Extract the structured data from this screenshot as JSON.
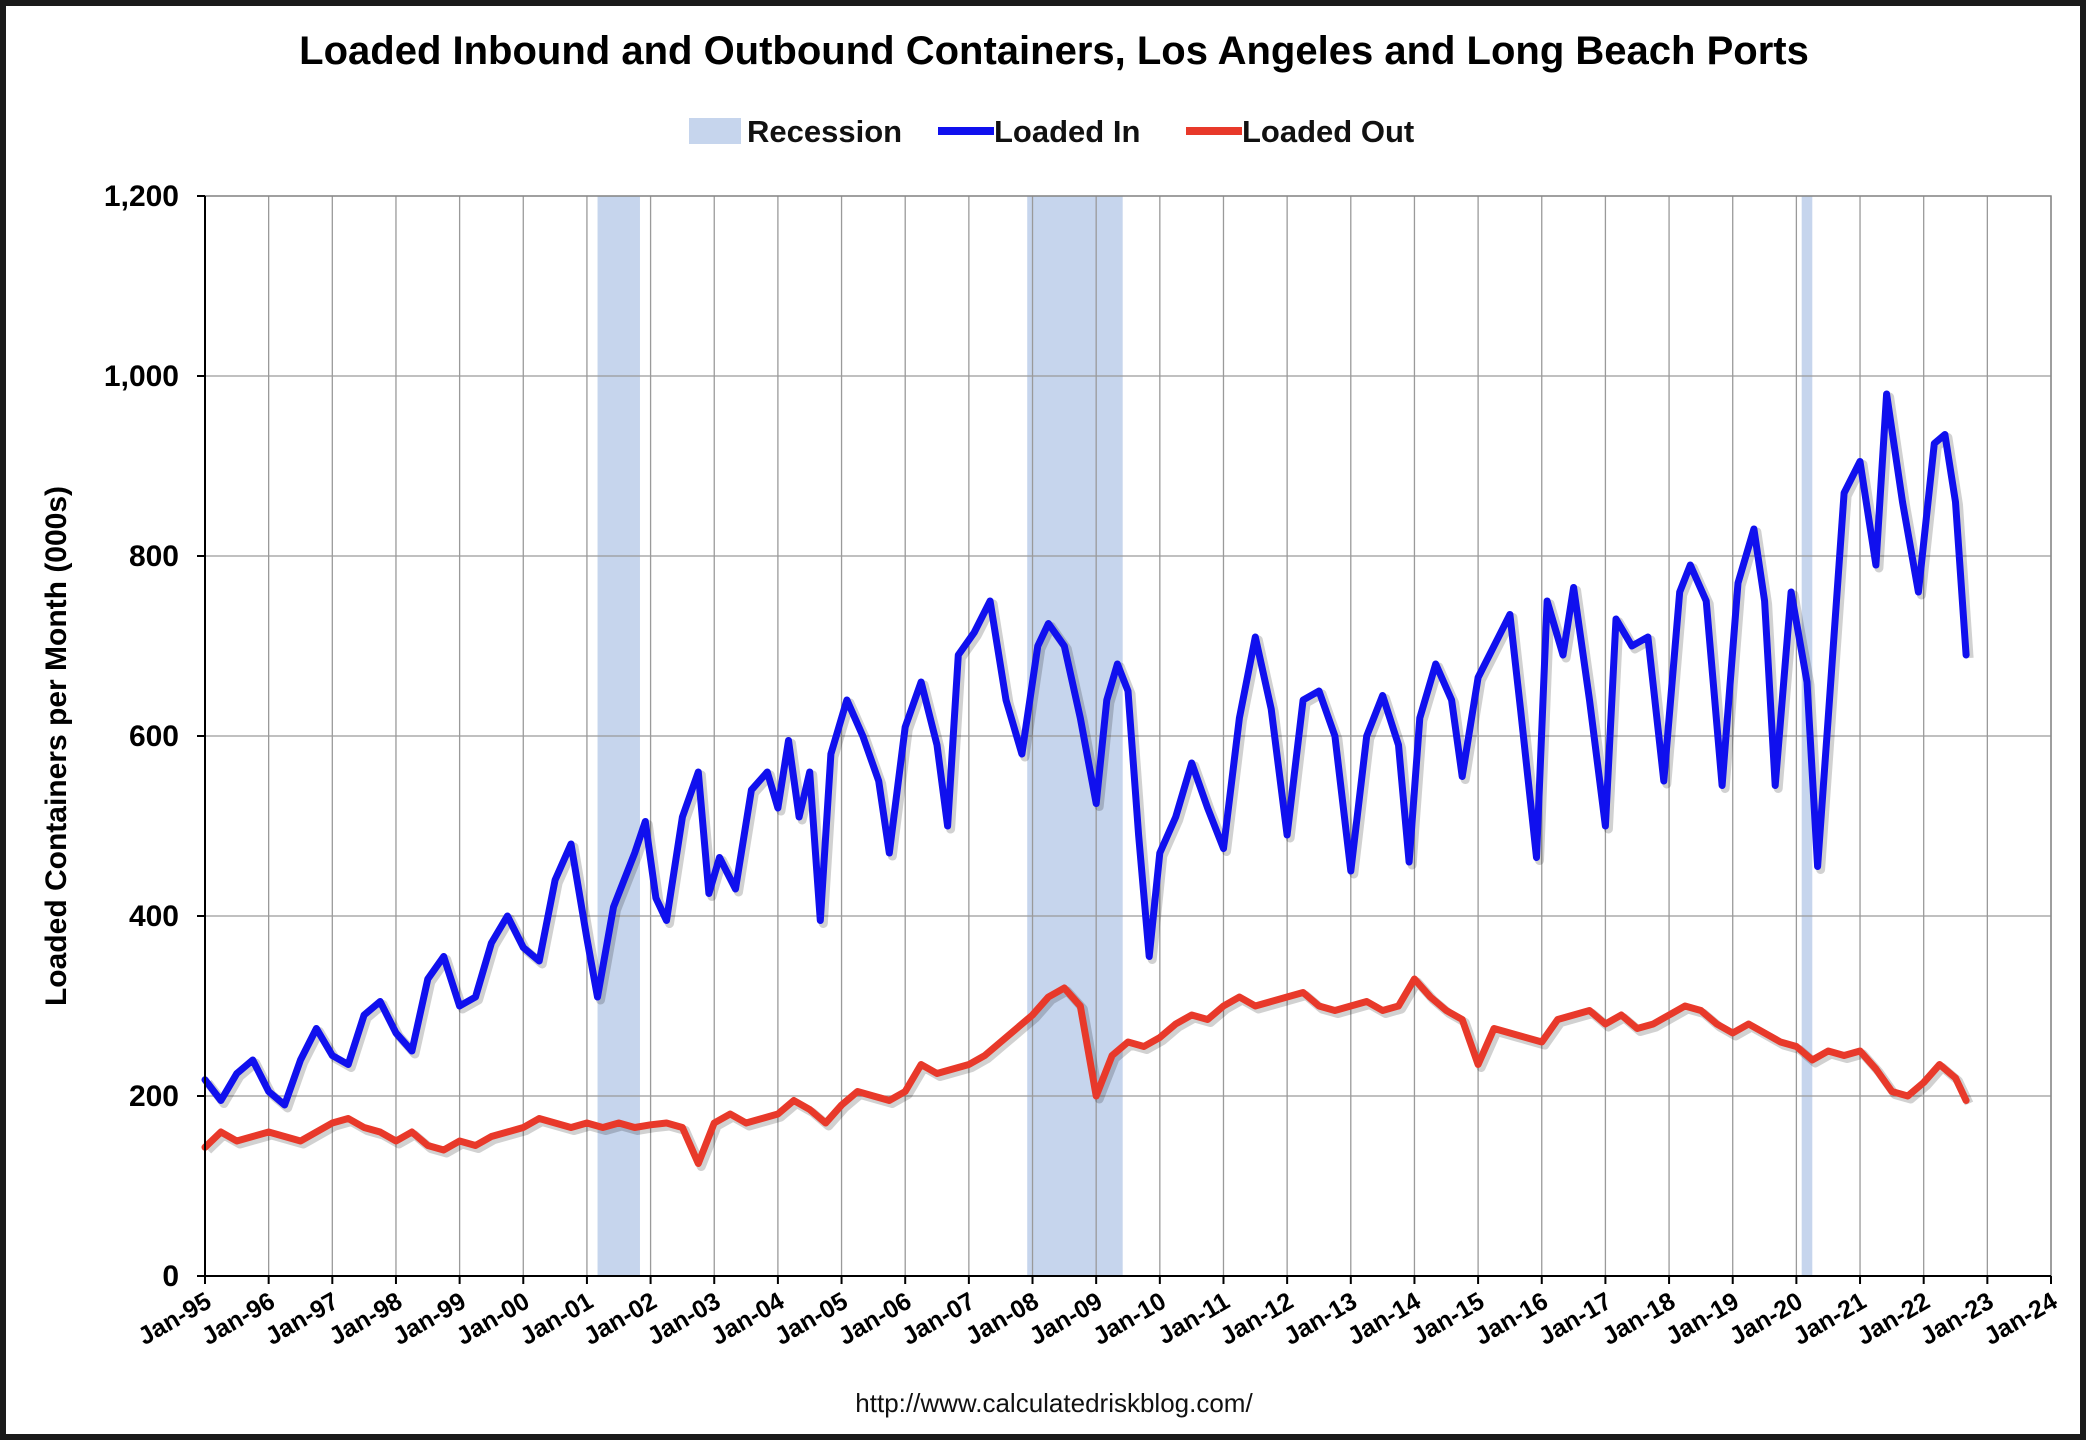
{
  "chart_data": {
    "type": "line",
    "title": "Loaded Inbound and Outbound Containers, Los Angeles and Long Beach Ports",
    "ylabel": "Loaded Containers per Month (000s)",
    "xlabel": "",
    "ylim": [
      0,
      1200
    ],
    "yticks": [
      0,
      200,
      400,
      600,
      800,
      1000,
      1200
    ],
    "ytick_labels": [
      "0",
      "200",
      "400",
      "600",
      "800",
      "1,000",
      "1,200"
    ],
    "xlim": [
      "1995-01",
      "2024-01"
    ],
    "xtick_labels": [
      "Jan-95",
      "Jan-96",
      "Jan-97",
      "Jan-98",
      "Jan-99",
      "Jan-00",
      "Jan-01",
      "Jan-02",
      "Jan-03",
      "Jan-04",
      "Jan-05",
      "Jan-06",
      "Jan-07",
      "Jan-08",
      "Jan-09",
      "Jan-10",
      "Jan-11",
      "Jan-12",
      "Jan-13",
      "Jan-14",
      "Jan-15",
      "Jan-16",
      "Jan-17",
      "Jan-18",
      "Jan-19",
      "Jan-20",
      "Jan-21",
      "Jan-22",
      "Jan-23",
      "Jan-24"
    ],
    "grid": true,
    "legend_placement": "top",
    "legend": [
      {
        "label": "Recession",
        "kind": "band",
        "color": "#c6d5ed"
      },
      {
        "label": "Loaded In",
        "kind": "line",
        "color": "#1010ee"
      },
      {
        "label": "Loaded Out",
        "kind": "line",
        "color": "#e8392a"
      }
    ],
    "recessions": [
      {
        "start": "2001-03",
        "end": "2001-11"
      },
      {
        "start": "2007-12",
        "end": "2009-06"
      },
      {
        "start": "2020-02",
        "end": "2020-04"
      }
    ],
    "series": [
      {
        "name": "Loaded In",
        "color": "#1010ee",
        "points": [
          [
            "1995-01",
            218
          ],
          [
            "1995-04",
            195
          ],
          [
            "1995-07",
            225
          ],
          [
            "1995-10",
            240
          ],
          [
            "1996-01",
            205
          ],
          [
            "1996-04",
            190
          ],
          [
            "1996-07",
            240
          ],
          [
            "1996-10",
            275
          ],
          [
            "1997-01",
            245
          ],
          [
            "1997-04",
            235
          ],
          [
            "1997-07",
            290
          ],
          [
            "1997-10",
            305
          ],
          [
            "1998-01",
            270
          ],
          [
            "1998-04",
            250
          ],
          [
            "1998-07",
            330
          ],
          [
            "1998-10",
            355
          ],
          [
            "1999-01",
            300
          ],
          [
            "1999-04",
            310
          ],
          [
            "1999-07",
            370
          ],
          [
            "1999-10",
            400
          ],
          [
            "2000-01",
            365
          ],
          [
            "2000-04",
            350
          ],
          [
            "2000-07",
            440
          ],
          [
            "2000-10",
            480
          ],
          [
            "2001-01",
            375
          ],
          [
            "2001-03",
            310
          ],
          [
            "2001-06",
            410
          ],
          [
            "2001-10",
            470
          ],
          [
            "2001-12",
            505
          ],
          [
            "2002-02",
            420
          ],
          [
            "2002-04",
            395
          ],
          [
            "2002-07",
            510
          ],
          [
            "2002-10",
            560
          ],
          [
            "2002-12",
            425
          ],
          [
            "2003-02",
            465
          ],
          [
            "2003-05",
            430
          ],
          [
            "2003-08",
            540
          ],
          [
            "2003-11",
            560
          ],
          [
            "2004-01",
            520
          ],
          [
            "2004-03",
            595
          ],
          [
            "2004-05",
            510
          ],
          [
            "2004-07",
            560
          ],
          [
            "2004-09",
            395
          ],
          [
            "2004-11",
            580
          ],
          [
            "2005-02",
            640
          ],
          [
            "2005-05",
            600
          ],
          [
            "2005-08",
            550
          ],
          [
            "2005-10",
            470
          ],
          [
            "2006-01",
            610
          ],
          [
            "2006-04",
            660
          ],
          [
            "2006-07",
            590
          ],
          [
            "2006-09",
            500
          ],
          [
            "2006-11",
            690
          ],
          [
            "2007-02",
            715
          ],
          [
            "2007-05",
            750
          ],
          [
            "2007-08",
            640
          ],
          [
            "2007-11",
            580
          ],
          [
            "2008-02",
            700
          ],
          [
            "2008-04",
            725
          ],
          [
            "2008-07",
            700
          ],
          [
            "2008-10",
            620
          ],
          [
            "2009-01",
            525
          ],
          [
            "2009-03",
            640
          ],
          [
            "2009-05",
            680
          ],
          [
            "2009-07",
            650
          ],
          [
            "2009-09",
            490
          ],
          [
            "2009-11",
            355
          ],
          [
            "2010-01",
            470
          ],
          [
            "2010-04",
            510
          ],
          [
            "2010-07",
            570
          ],
          [
            "2010-10",
            520
          ],
          [
            "2011-01",
            475
          ],
          [
            "2011-04",
            620
          ],
          [
            "2011-07",
            710
          ],
          [
            "2011-10",
            630
          ],
          [
            "2012-01",
            490
          ],
          [
            "2012-04",
            640
          ],
          [
            "2012-07",
            650
          ],
          [
            "2012-10",
            600
          ],
          [
            "2013-01",
            450
          ],
          [
            "2013-04",
            600
          ],
          [
            "2013-07",
            645
          ],
          [
            "2013-10",
            590
          ],
          [
            "2013-12",
            460
          ],
          [
            "2014-02",
            620
          ],
          [
            "2014-05",
            680
          ],
          [
            "2014-08",
            640
          ],
          [
            "2014-10",
            555
          ],
          [
            "2015-01",
            665
          ],
          [
            "2015-04",
            700
          ],
          [
            "2015-07",
            735
          ],
          [
            "2015-09",
            630
          ],
          [
            "2015-12",
            465
          ],
          [
            "2016-02",
            750
          ],
          [
            "2016-05",
            690
          ],
          [
            "2016-07",
            765
          ],
          [
            "2016-10",
            640
          ],
          [
            "2017-01",
            500
          ],
          [
            "2017-03",
            730
          ],
          [
            "2017-06",
            700
          ],
          [
            "2017-09",
            710
          ],
          [
            "2017-12",
            550
          ],
          [
            "2018-03",
            760
          ],
          [
            "2018-05",
            790
          ],
          [
            "2018-08",
            750
          ],
          [
            "2018-11",
            545
          ],
          [
            "2019-02",
            770
          ],
          [
            "2019-05",
            830
          ],
          [
            "2019-07",
            750
          ],
          [
            "2019-09",
            545
          ],
          [
            "2019-12",
            760
          ],
          [
            "2020-03",
            660
          ],
          [
            "2020-05",
            455
          ],
          [
            "2020-07",
            620
          ],
          [
            "2020-10",
            870
          ],
          [
            "2021-01",
            905
          ],
          [
            "2021-04",
            790
          ],
          [
            "2021-06",
            980
          ],
          [
            "2021-09",
            860
          ],
          [
            "2021-12",
            760
          ],
          [
            "2022-03",
            925
          ],
          [
            "2022-05",
            935
          ],
          [
            "2022-07",
            860
          ],
          [
            "2022-09",
            690
          ]
        ]
      },
      {
        "name": "Loaded Out",
        "color": "#e8392a",
        "points": [
          [
            "1995-01",
            143
          ],
          [
            "1995-04",
            160
          ],
          [
            "1995-07",
            150
          ],
          [
            "1995-10",
            155
          ],
          [
            "1996-01",
            160
          ],
          [
            "1996-04",
            155
          ],
          [
            "1996-07",
            150
          ],
          [
            "1996-10",
            160
          ],
          [
            "1997-01",
            170
          ],
          [
            "1997-04",
            175
          ],
          [
            "1997-07",
            165
          ],
          [
            "1997-10",
            160
          ],
          [
            "1998-01",
            150
          ],
          [
            "1998-04",
            160
          ],
          [
            "1998-07",
            145
          ],
          [
            "1998-10",
            140
          ],
          [
            "1999-01",
            150
          ],
          [
            "1999-04",
            145
          ],
          [
            "1999-07",
            155
          ],
          [
            "1999-10",
            160
          ],
          [
            "2000-01",
            165
          ],
          [
            "2000-04",
            175
          ],
          [
            "2000-07",
            170
          ],
          [
            "2000-10",
            165
          ],
          [
            "2001-01",
            170
          ],
          [
            "2001-04",
            165
          ],
          [
            "2001-07",
            170
          ],
          [
            "2001-10",
            165
          ],
          [
            "2002-01",
            168
          ],
          [
            "2002-04",
            170
          ],
          [
            "2002-07",
            165
          ],
          [
            "2002-10",
            125
          ],
          [
            "2003-01",
            170
          ],
          [
            "2003-04",
            180
          ],
          [
            "2003-07",
            170
          ],
          [
            "2003-10",
            175
          ],
          [
            "2004-01",
            180
          ],
          [
            "2004-04",
            195
          ],
          [
            "2004-07",
            185
          ],
          [
            "2004-10",
            170
          ],
          [
            "2005-01",
            190
          ],
          [
            "2005-04",
            205
          ],
          [
            "2005-07",
            200
          ],
          [
            "2005-10",
            195
          ],
          [
            "2006-01",
            205
          ],
          [
            "2006-04",
            235
          ],
          [
            "2006-07",
            225
          ],
          [
            "2006-10",
            230
          ],
          [
            "2007-01",
            235
          ],
          [
            "2007-04",
            245
          ],
          [
            "2007-07",
            260
          ],
          [
            "2007-10",
            275
          ],
          [
            "2008-01",
            290
          ],
          [
            "2008-04",
            310
          ],
          [
            "2008-07",
            320
          ],
          [
            "2008-10",
            300
          ],
          [
            "2009-01",
            200
          ],
          [
            "2009-04",
            245
          ],
          [
            "2009-07",
            260
          ],
          [
            "2009-10",
            255
          ],
          [
            "2010-01",
            265
          ],
          [
            "2010-04",
            280
          ],
          [
            "2010-07",
            290
          ],
          [
            "2010-10",
            285
          ],
          [
            "2011-01",
            300
          ],
          [
            "2011-04",
            310
          ],
          [
            "2011-07",
            300
          ],
          [
            "2011-10",
            305
          ],
          [
            "2012-01",
            310
          ],
          [
            "2012-04",
            315
          ],
          [
            "2012-07",
            300
          ],
          [
            "2012-10",
            295
          ],
          [
            "2013-01",
            300
          ],
          [
            "2013-04",
            305
          ],
          [
            "2013-07",
            295
          ],
          [
            "2013-10",
            300
          ],
          [
            "2014-01",
            330
          ],
          [
            "2014-04",
            310
          ],
          [
            "2014-07",
            295
          ],
          [
            "2014-10",
            285
          ],
          [
            "2015-01",
            235
          ],
          [
            "2015-04",
            275
          ],
          [
            "2015-07",
            270
          ],
          [
            "2015-10",
            265
          ],
          [
            "2016-01",
            260
          ],
          [
            "2016-04",
            285
          ],
          [
            "2016-07",
            290
          ],
          [
            "2016-10",
            295
          ],
          [
            "2017-01",
            280
          ],
          [
            "2017-04",
            290
          ],
          [
            "2017-07",
            275
          ],
          [
            "2017-10",
            280
          ],
          [
            "2018-01",
            290
          ],
          [
            "2018-04",
            300
          ],
          [
            "2018-07",
            295
          ],
          [
            "2018-10",
            280
          ],
          [
            "2019-01",
            270
          ],
          [
            "2019-04",
            280
          ],
          [
            "2019-07",
            270
          ],
          [
            "2019-10",
            260
          ],
          [
            "2020-01",
            255
          ],
          [
            "2020-04",
            240
          ],
          [
            "2020-07",
            250
          ],
          [
            "2020-10",
            245
          ],
          [
            "2021-01",
            250
          ],
          [
            "2021-04",
            230
          ],
          [
            "2021-07",
            205
          ],
          [
            "2021-10",
            200
          ],
          [
            "2022-01",
            215
          ],
          [
            "2022-04",
            235
          ],
          [
            "2022-07",
            220
          ],
          [
            "2022-09",
            195
          ]
        ]
      }
    ]
  },
  "source_note": "http://www.calculatedriskblog.com/"
}
